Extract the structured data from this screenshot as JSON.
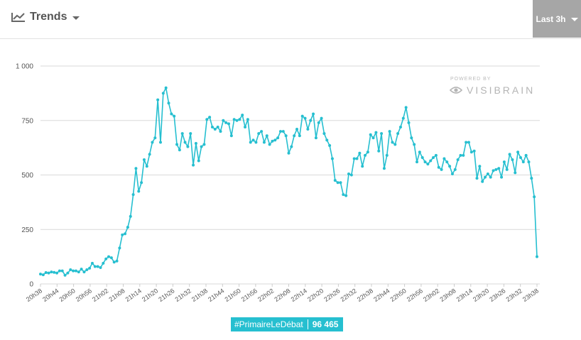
{
  "header": {
    "title": "Trends",
    "range_label": "Last 3h"
  },
  "watermark": {
    "powered": "POWERED BY",
    "brand": "VISIBRAIN"
  },
  "hashtag": {
    "name": "#PrimaireLeDébat",
    "count": "96 465"
  },
  "colors": {
    "series": "#26bfd0",
    "grid": "#d9d9d9"
  },
  "chart_data": {
    "type": "line",
    "ylim": [
      0,
      1000
    ],
    "yticks": [
      0,
      250,
      500,
      750,
      1000
    ],
    "ytick_labels": [
      "0",
      "250",
      "500",
      "750",
      "1 000"
    ],
    "x_labels": [
      "20h38",
      "20h44",
      "20h50",
      "20h56",
      "21h02",
      "21h08",
      "21h14",
      "21h20",
      "21h26",
      "21h32",
      "21h38",
      "21h44",
      "21h50",
      "21h56",
      "22h02",
      "22h08",
      "22h14",
      "22h20",
      "22h26",
      "22h32",
      "22h38",
      "22h44",
      "22h50",
      "22h56",
      "23h02",
      "23h08",
      "23h14",
      "23h20",
      "23h26",
      "23h32",
      "23h38"
    ],
    "grid": true,
    "legend": "none",
    "values": [
      45,
      42,
      52,
      50,
      55,
      53,
      50,
      60,
      60,
      40,
      50,
      65,
      60,
      60,
      55,
      68,
      55,
      65,
      72,
      95,
      80,
      80,
      75,
      95,
      115,
      125,
      120,
      100,
      105,
      165,
      225,
      230,
      260,
      310,
      410,
      530,
      425,
      465,
      570,
      540,
      595,
      650,
      670,
      845,
      650,
      875,
      900,
      830,
      780,
      770,
      640,
      615,
      690,
      650,
      630,
      690,
      545,
      645,
      565,
      630,
      640,
      755,
      765,
      720,
      710,
      720,
      700,
      750,
      740,
      735,
      680,
      755,
      750,
      755,
      775,
      720,
      755,
      650,
      660,
      650,
      690,
      700,
      650,
      680,
      640,
      655,
      660,
      670,
      700,
      700,
      680,
      600,
      630,
      680,
      710,
      680,
      770,
      760,
      710,
      750,
      780,
      670,
      740,
      760,
      690,
      660,
      635,
      575,
      475,
      465,
      465,
      410,
      405,
      505,
      500,
      575,
      575,
      600,
      540,
      590,
      605,
      685,
      670,
      695,
      610,
      690,
      530,
      590,
      700,
      650,
      640,
      690,
      720,
      760,
      810,
      740,
      670,
      640,
      560,
      605,
      580,
      560,
      550,
      565,
      580,
      590,
      535,
      525,
      575,
      560,
      540,
      505,
      525,
      570,
      590,
      590,
      650,
      650,
      605,
      610,
      485,
      540,
      470,
      490,
      505,
      490,
      520,
      525,
      530,
      490,
      560,
      525,
      595,
      570,
      510,
      605,
      580,
      560,
      590,
      560,
      485,
      400,
      125
    ]
  }
}
